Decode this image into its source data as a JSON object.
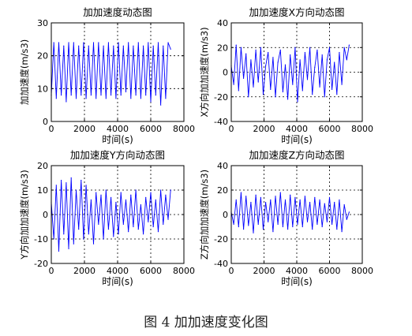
{
  "figure_caption": "图 4  加加速度变化图",
  "chart_data": [
    {
      "type": "line",
      "title": "加加速度动态图",
      "xlabel": "时间(s)",
      "ylabel": "加加速度(m/s3)",
      "xlim": [
        0,
        8000
      ],
      "ylim": [
        0,
        30
      ],
      "xticks": [
        0,
        2000,
        4000,
        6000,
        8000
      ],
      "yticks": [
        0,
        10,
        20,
        30
      ],
      "grid": "dotted",
      "line_color": "#0000ff",
      "x": [
        0,
        150,
        300,
        450,
        600,
        750,
        900,
        1050,
        1200,
        1350,
        1500,
        1650,
        1800,
        1950,
        2100,
        2250,
        2400,
        2550,
        2700,
        2850,
        3000,
        3150,
        3300,
        3450,
        3600,
        3750,
        3900,
        4050,
        4200,
        4350,
        4500,
        4650,
        4800,
        4950,
        5100,
        5250,
        5400,
        5550,
        5700,
        5850,
        6000,
        6150,
        6300,
        6450,
        6600,
        6750,
        6900,
        7050,
        7200
      ],
      "y": [
        8,
        24,
        7,
        24,
        8,
        23,
        6,
        24,
        8,
        24,
        7,
        23,
        8,
        24,
        7,
        23,
        8,
        24,
        7,
        24,
        8,
        23,
        7,
        24,
        8,
        23,
        7,
        24,
        8,
        23,
        9,
        24,
        7,
        23,
        8,
        24,
        7,
        23,
        8,
        24,
        6,
        23,
        8,
        24,
        5,
        23,
        7,
        24,
        22
      ]
    },
    {
      "type": "line",
      "title": "加加速度X方向动态图",
      "xlabel": "时间(s)",
      "ylabel": "X方向加加速度(m/s3)",
      "xlim": [
        0,
        8000
      ],
      "ylim": [
        -40,
        40
      ],
      "xticks": [
        0,
        2000,
        4000,
        6000,
        8000
      ],
      "yticks": [
        -40,
        -20,
        0,
        20,
        40
      ],
      "grid": "dotted",
      "line_color": "#0000ff",
      "x": [
        0,
        150,
        300,
        450,
        600,
        750,
        900,
        1050,
        1200,
        1350,
        1500,
        1650,
        1800,
        1950,
        2100,
        2250,
        2400,
        2550,
        2700,
        2850,
        3000,
        3150,
        3300,
        3450,
        3600,
        3750,
        3900,
        4050,
        4200,
        4350,
        4500,
        4650,
        4800,
        4950,
        5100,
        5250,
        5400,
        5550,
        5700,
        5850,
        6000,
        6150,
        6300,
        6450,
        6600,
        6750,
        6900,
        7050,
        7200
      ],
      "y": [
        5,
        -10,
        22,
        -15,
        20,
        -5,
        15,
        -20,
        10,
        -12,
        18,
        -8,
        20,
        -18,
        5,
        16,
        -14,
        12,
        -20,
        8,
        18,
        -16,
        6,
        -22,
        14,
        -10,
        20,
        -24,
        10,
        -15,
        16,
        -6,
        20,
        -18,
        4,
        18,
        -12,
        14,
        -20,
        10,
        20,
        -14,
        8,
        -18,
        16,
        -10,
        20,
        10,
        22
      ]
    },
    {
      "type": "line",
      "title": "加加速度Y方向动态图",
      "xlabel": "时间(s)",
      "ylabel": "Y方向加加速度(m/s3)",
      "xlim": [
        0,
        8000
      ],
      "ylim": [
        -20,
        20
      ],
      "xticks": [
        0,
        2000,
        4000,
        6000,
        8000
      ],
      "yticks": [
        -20,
        -10,
        0,
        10,
        20
      ],
      "grid": "dotted",
      "line_color": "#0000ff",
      "x": [
        0,
        150,
        300,
        450,
        600,
        750,
        900,
        1050,
        1200,
        1350,
        1500,
        1650,
        1800,
        1950,
        2100,
        2250,
        2400,
        2550,
        2700,
        2850,
        3000,
        3150,
        3300,
        3450,
        3600,
        3750,
        3900,
        4050,
        4200,
        4350,
        4500,
        4650,
        4800,
        4950,
        5100,
        5250,
        5400,
        5550,
        5700,
        5850,
        6000,
        6150,
        6300,
        6450,
        6600,
        6750,
        6900,
        7050,
        7200
      ],
      "y": [
        5,
        -10,
        12,
        -15,
        14,
        -8,
        13,
        -14,
        15,
        -12,
        10,
        -6,
        14,
        -10,
        12,
        -8,
        6,
        -12,
        9,
        -4,
        8,
        -10,
        10,
        -6,
        7,
        -9,
        5,
        -8,
        9,
        -4,
        6,
        -7,
        8,
        -5,
        10,
        -6,
        4,
        -8,
        7,
        -3,
        9,
        -5,
        6,
        -7,
        10,
        -4,
        8,
        -2,
        10
      ]
    },
    {
      "type": "line",
      "title": "加加速度Z方向动态图",
      "xlabel": "时间(s)",
      "ylabel": "Z方向加加速度(m/s3)",
      "xlim": [
        0,
        8000
      ],
      "ylim": [
        -40,
        40
      ],
      "xticks": [
        0,
        2000,
        4000,
        6000,
        8000
      ],
      "yticks": [
        -40,
        -20,
        0,
        20,
        40
      ],
      "grid": "dotted",
      "line_color": "#0000ff",
      "x": [
        0,
        150,
        300,
        450,
        600,
        750,
        900,
        1050,
        1200,
        1350,
        1500,
        1650,
        1800,
        1950,
        2100,
        2250,
        2400,
        2550,
        2700,
        2850,
        3000,
        3150,
        3300,
        3450,
        3600,
        3750,
        3900,
        4050,
        4200,
        4350,
        4500,
        4650,
        4800,
        4950,
        5100,
        5250,
        5400,
        5550,
        5700,
        5850,
        6000,
        6150,
        6300,
        6450,
        6600,
        6750,
        6900,
        7050,
        7200
      ],
      "y": [
        2,
        -8,
        12,
        -10,
        18,
        -12,
        15,
        -9,
        10,
        -15,
        16,
        -8,
        14,
        -12,
        10,
        -6,
        12,
        -14,
        15,
        -8,
        18,
        -10,
        12,
        -12,
        16,
        -10,
        14,
        -8,
        12,
        -10,
        15,
        -6,
        10,
        -12,
        14,
        -8,
        12,
        -10,
        9,
        -6,
        14,
        -8,
        10,
        -12,
        12,
        -14,
        8,
        -4,
        2
      ]
    }
  ]
}
